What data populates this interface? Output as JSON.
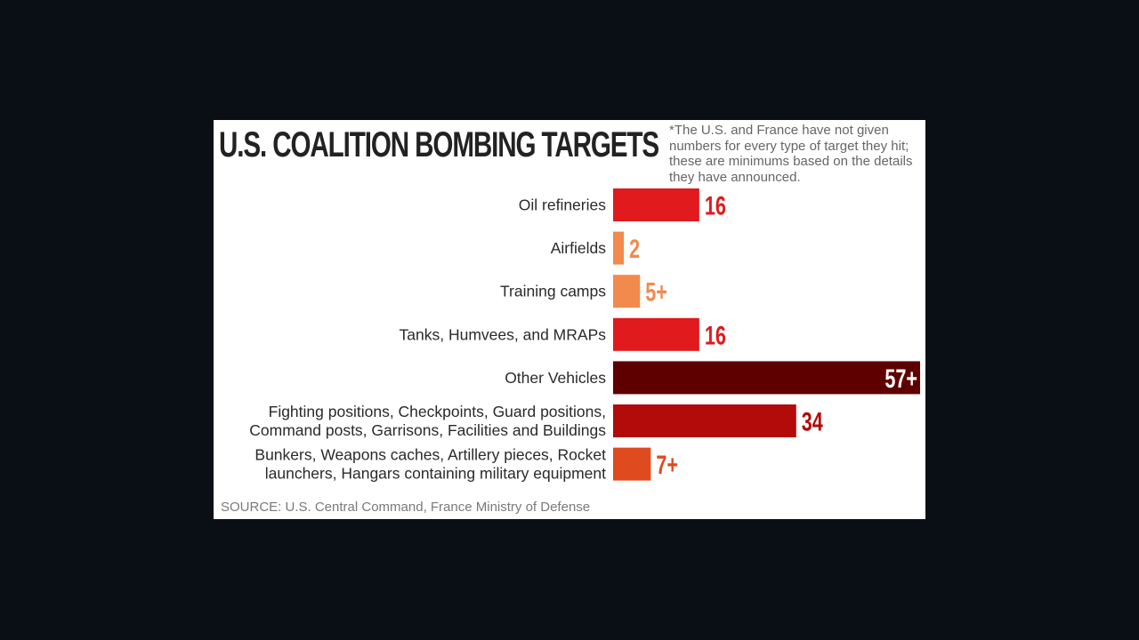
{
  "chart_data": {
    "type": "bar",
    "orientation": "horizontal",
    "title": "U.S. COALITION BOMBING TARGETS",
    "note": "*The U.S. and France have not given numbers for every type of target they hit; these are minimums based on the details they have announced.",
    "source": "SOURCE: U.S. Central Command, France Ministry of Defense",
    "categories": [
      [
        "Oil refineries"
      ],
      [
        "Airfields"
      ],
      [
        "Training camps"
      ],
      [
        "Tanks, Humvees, and MRAPs"
      ],
      [
        "Other Vehicles"
      ],
      [
        "Fighting positions, Checkpoints, Guard positions,",
        "Command posts, Garrisons, Facilities and Buildings"
      ],
      [
        "Bunkers, Weapons caches, Artillery pieces, Rocket",
        "launchers, Hangars containing military equipment"
      ]
    ],
    "values": [
      16,
      2,
      5,
      16,
      57,
      34,
      7
    ],
    "value_labels": [
      "16",
      "2",
      "5+",
      "16",
      "57+",
      "34",
      "7+"
    ],
    "colors": [
      "#e01a1d",
      "#f28a4e",
      "#f28a4e",
      "#e01a1d",
      "#5f0000",
      "#b30a0a",
      "#e04a1f"
    ],
    "label_inside": [
      false,
      false,
      false,
      false,
      true,
      false,
      false
    ],
    "grid": false,
    "legend": "none"
  }
}
